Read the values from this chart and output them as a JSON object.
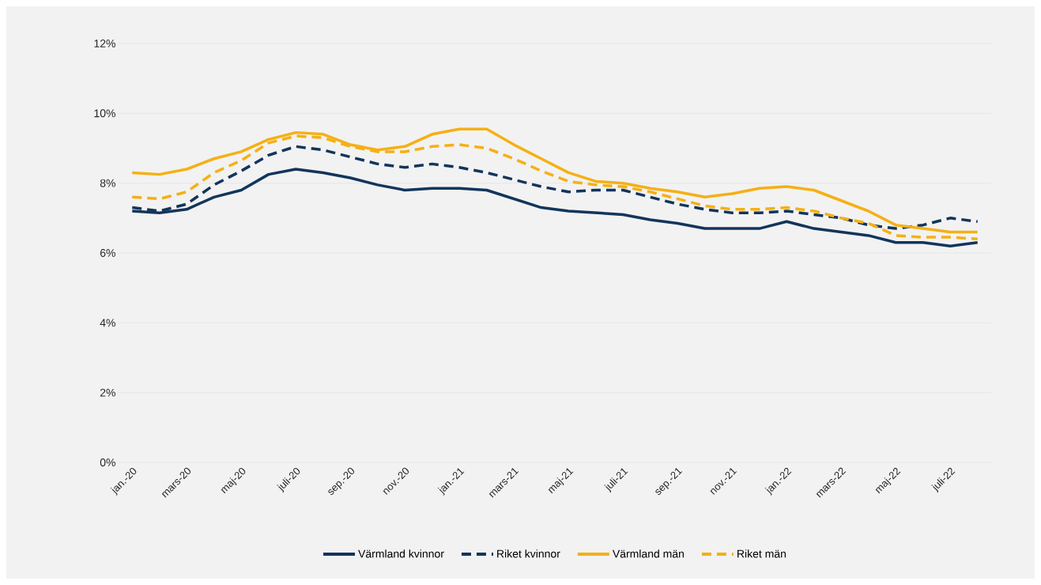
{
  "chart_data": {
    "type": "line",
    "categories": [
      "jan.-20",
      null,
      "mars-20",
      null,
      "maj-20",
      null,
      "juli-20",
      null,
      "sep.-20",
      null,
      "nov.-20",
      null,
      "jan.-21",
      null,
      "mars-21",
      null,
      "maj-21",
      null,
      "juli-21",
      null,
      "sep.-21",
      null,
      "nov.-21",
      null,
      "jan.-22",
      null,
      "mars-22",
      null,
      "maj-22",
      null,
      "juli-22",
      null
    ],
    "series": [
      {
        "name": "Värmland kvinnor",
        "color": "#12355b",
        "line_style": "solid",
        "values": [
          7.2,
          7.15,
          7.25,
          7.6,
          7.8,
          8.25,
          8.4,
          8.3,
          8.15,
          7.95,
          7.8,
          7.85,
          7.85,
          7.8,
          7.55,
          7.3,
          7.2,
          7.15,
          7.1,
          6.95,
          6.85,
          6.7,
          6.7,
          6.7,
          6.9,
          6.7,
          6.6,
          6.5,
          6.3,
          6.3,
          6.2,
          6.3
        ]
      },
      {
        "name": "Riket kvinnor",
        "color": "#12355b",
        "line_style": "dashed",
        "values": [
          7.3,
          7.2,
          7.4,
          7.95,
          8.35,
          8.8,
          9.05,
          8.95,
          8.75,
          8.55,
          8.45,
          8.55,
          8.45,
          8.3,
          8.1,
          7.9,
          7.75,
          7.8,
          7.8,
          7.6,
          7.4,
          7.25,
          7.15,
          7.15,
          7.2,
          7.1,
          7.0,
          6.8,
          6.7,
          6.8,
          7.0,
          6.9
        ]
      },
      {
        "name": "Värmland män",
        "color": "#f5b014",
        "line_style": "solid",
        "values": [
          8.3,
          8.25,
          8.4,
          8.7,
          8.9,
          9.25,
          9.45,
          9.4,
          9.1,
          8.95,
          9.05,
          9.4,
          9.55,
          9.55,
          9.1,
          8.7,
          8.3,
          8.05,
          8.0,
          7.85,
          7.75,
          7.6,
          7.7,
          7.85,
          7.9,
          7.8,
          7.5,
          7.2,
          6.8,
          6.7,
          6.6,
          6.6
        ]
      },
      {
        "name": "Riket män",
        "color": "#f5b014",
        "line_style": "dashed",
        "values": [
          7.6,
          7.55,
          7.75,
          8.3,
          8.65,
          9.15,
          9.35,
          9.3,
          9.05,
          8.9,
          8.9,
          9.05,
          9.1,
          9.0,
          8.7,
          8.35,
          8.05,
          7.95,
          7.9,
          7.75,
          7.55,
          7.35,
          7.25,
          7.25,
          7.3,
          7.2,
          7.0,
          6.85,
          6.5,
          6.45,
          6.45,
          6.4
        ]
      }
    ],
    "ylim": [
      0,
      12
    ],
    "yticks": [
      {
        "value": 0,
        "label": "0%"
      },
      {
        "value": 2,
        "label": "2%"
      },
      {
        "value": 4,
        "label": "4%"
      },
      {
        "value": 6,
        "label": "6%"
      },
      {
        "value": 8,
        "label": "8%"
      },
      {
        "value": 10,
        "label": "10%"
      },
      {
        "value": 12,
        "label": "12%"
      }
    ],
    "grid": "y",
    "legend": "bottom"
  }
}
